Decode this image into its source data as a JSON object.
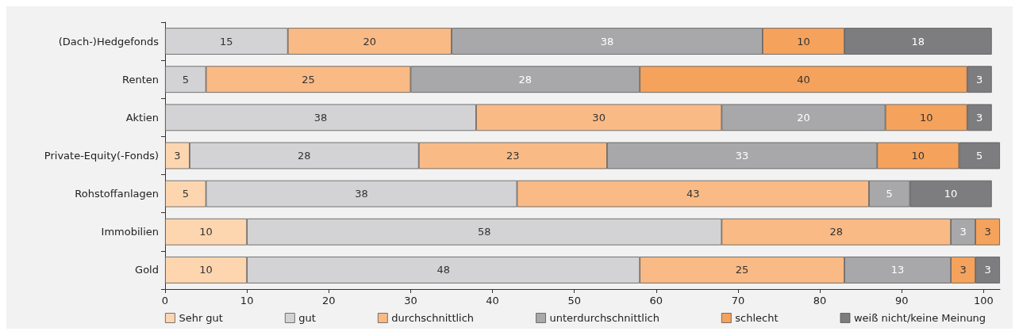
{
  "chart_data": {
    "type": "bar",
    "orientation": "horizontal",
    "stacked": true,
    "data_labels": true,
    "grid": false,
    "legend": "bottom",
    "categories": [
      "(Dach-)Hedgefonds",
      "Renten",
      "Aktien",
      "Private-Equity(-Fonds)",
      "Rohstoffanlagen",
      "Immobilien",
      "Gold"
    ],
    "series": [
      {
        "name": "Sehr gut",
        "color": "#fdd6b0",
        "values": [
          null,
          null,
          null,
          3,
          5,
          10,
          10
        ]
      },
      {
        "name": "gut",
        "color": "#d3d3d5",
        "values": [
          15,
          5,
          38,
          28,
          38,
          58,
          48
        ]
      },
      {
        "name": "durchschnittlich",
        "color": "#f9ba85",
        "values": [
          20,
          25,
          30,
          23,
          43,
          28,
          25
        ]
      },
      {
        "name": "unterdurchschnittlich",
        "color": "#a8a8aa",
        "values": [
          38,
          28,
          20,
          33,
          5,
          3,
          13
        ]
      },
      {
        "name": "schlecht",
        "color": "#f5a25c",
        "values": [
          10,
          40,
          10,
          10,
          null,
          3,
          3
        ]
      },
      {
        "name": "weiß nicht/keine Meinung",
        "color": "#7d7d7f",
        "values": [
          18,
          3,
          3,
          5,
          10,
          null,
          3
        ]
      }
    ],
    "xlim": [
      0,
      102
    ],
    "xticks": [
      0,
      10,
      20,
      30,
      40,
      50,
      60,
      70,
      80,
      90,
      100
    ]
  }
}
